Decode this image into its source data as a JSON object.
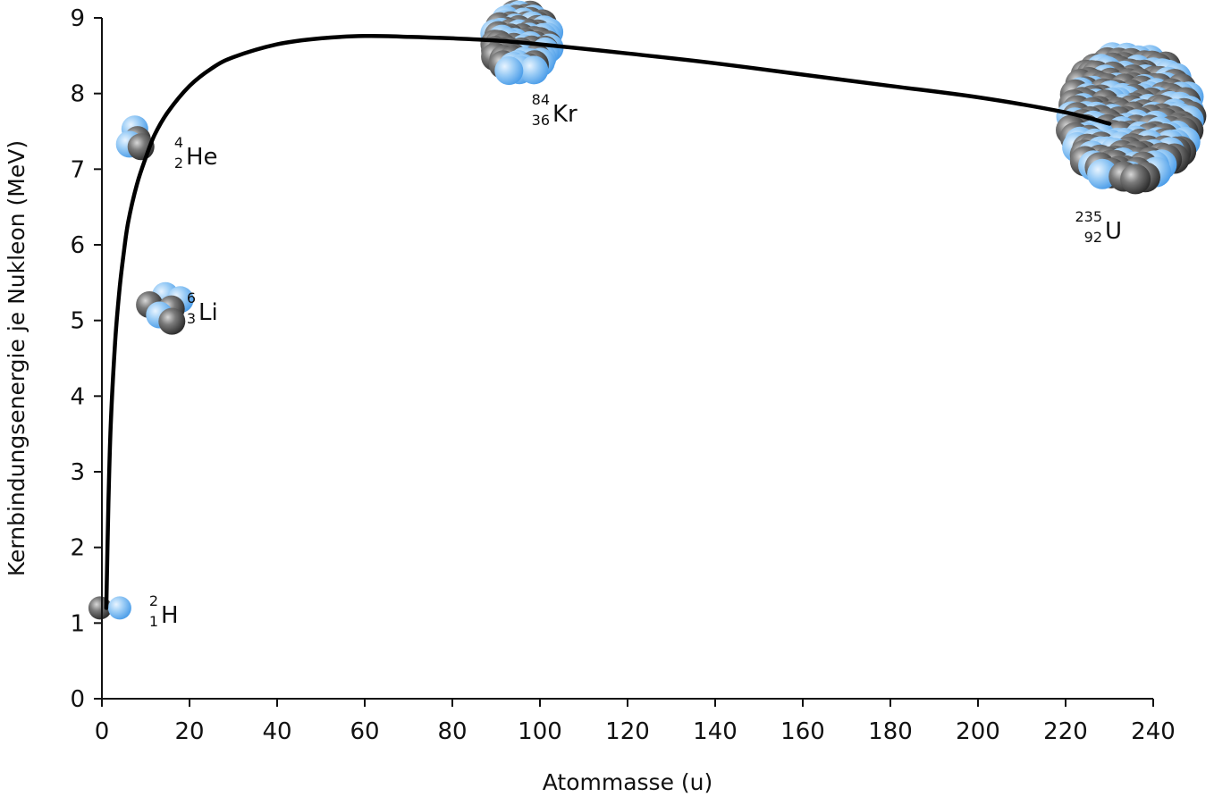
{
  "chart_data": {
    "type": "line",
    "xlabel": "Atommasse (u)",
    "ylabel": "Kernbindungsenergie je Nukleon (MeV)",
    "xlim": [
      0,
      240
    ],
    "ylim": [
      0,
      9
    ],
    "x_ticks": [
      0,
      20,
      40,
      60,
      80,
      100,
      120,
      140,
      160,
      180,
      200,
      220,
      240
    ],
    "y_ticks": [
      0,
      1,
      2,
      3,
      4,
      5,
      6,
      7,
      8,
      9
    ],
    "grid": false,
    "series": [
      {
        "x": [
          1,
          1.5,
          2,
          3,
          4,
          5,
          6,
          8,
          10,
          12,
          15,
          20,
          25,
          30,
          40,
          50,
          60,
          70,
          80,
          90,
          100,
          120,
          140,
          160,
          180,
          200,
          220,
          230
        ],
        "y": [
          1.2,
          2.6,
          3.6,
          4.7,
          5.4,
          5.9,
          6.3,
          6.8,
          7.15,
          7.45,
          7.75,
          8.1,
          8.33,
          8.48,
          8.65,
          8.73,
          8.76,
          8.75,
          8.73,
          8.7,
          8.65,
          8.53,
          8.4,
          8.25,
          8.1,
          7.95,
          7.75,
          7.6
        ]
      }
    ],
    "annotations": [
      {
        "symbol": "H",
        "mass_number": "2",
        "atomic_number": "1",
        "protons": 1,
        "neutrons": 1,
        "x": 1,
        "y": 1.2
      },
      {
        "symbol": "He",
        "mass_number": "4",
        "atomic_number": "2",
        "protons": 2,
        "neutrons": 2,
        "x": 4,
        "y": 7.45
      },
      {
        "symbol": "Li",
        "mass_number": "6",
        "atomic_number": "3",
        "protons": 3,
        "neutrons": 3,
        "x": 6,
        "y": 5.25
      },
      {
        "symbol": "Kr",
        "mass_number": "84",
        "atomic_number": "36",
        "protons": 36,
        "neutrons": 48,
        "x": 84,
        "y": 8.72
      },
      {
        "symbol": "U",
        "mass_number": "235",
        "atomic_number": "92",
        "protons": 92,
        "neutrons": 143,
        "x": 235,
        "y": 7.57
      }
    ],
    "colors": {
      "curve": "#000000",
      "proton": "#5aaaf0",
      "neutron": "#444444"
    }
  }
}
